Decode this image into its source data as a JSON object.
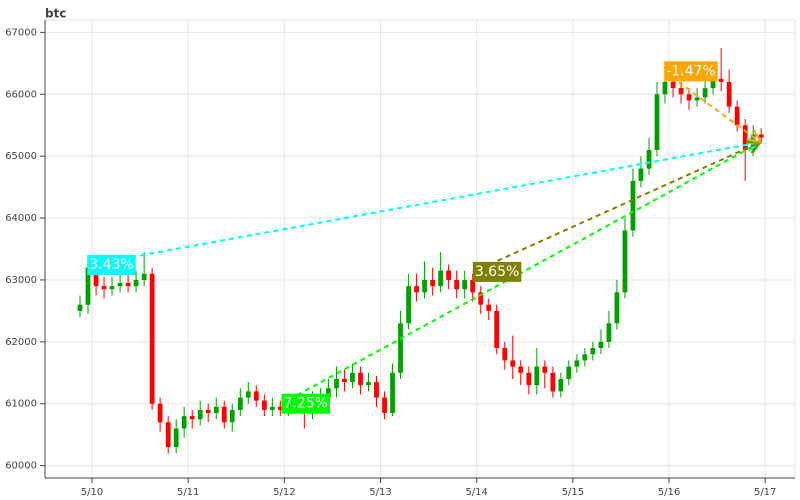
{
  "chart_data": {
    "type": "candlestick",
    "title": "btc",
    "x": [
      -0.125,
      -0.042,
      0.042,
      0.125,
      0.208,
      0.292,
      0.375,
      0.458,
      0.542,
      0.625,
      0.708,
      0.792,
      0.875,
      0.958,
      1.042,
      1.125,
      1.208,
      1.292,
      1.375,
      1.458,
      1.542,
      1.625,
      1.708,
      1.792,
      1.875,
      1.958,
      2.042,
      2.125,
      2.208,
      2.292,
      2.375,
      2.458,
      2.542,
      2.625,
      2.708,
      2.792,
      2.875,
      2.958,
      3.042,
      3.125,
      3.208,
      3.292,
      3.375,
      3.458,
      3.542,
      3.625,
      3.708,
      3.792,
      3.875,
      3.958,
      4.042,
      4.125,
      4.208,
      4.292,
      4.375,
      4.458,
      4.542,
      4.625,
      4.708,
      4.792,
      4.875,
      4.958,
      5.042,
      5.125,
      5.208,
      5.292,
      5.375,
      5.458,
      5.542,
      5.625,
      5.708,
      5.792,
      5.875,
      5.958,
      6.042,
      6.125,
      6.208,
      6.292,
      6.375,
      6.458,
      6.542,
      6.625,
      6.708,
      6.792,
      6.875,
      6.958
    ],
    "open": [
      62500,
      62600,
      63200,
      62900,
      62850,
      62900,
      62950,
      62900,
      63000,
      63100,
      61000,
      60700,
      60300,
      60600,
      60800,
      60750,
      60900,
      60850,
      60950,
      60700,
      60900,
      61100,
      61200,
      61050,
      60900,
      60950,
      60900,
      61000,
      60950,
      60850,
      61050,
      61100,
      61250,
      61400,
      61350,
      61500,
      61300,
      61350,
      61100,
      60850,
      61500,
      62300,
      62900,
      62800,
      63000,
      62900,
      63150,
      63000,
      62850,
      63000,
      62800,
      62600,
      62500,
      61900,
      61700,
      61600,
      61500,
      61300,
      61600,
      61500,
      61200,
      61400,
      61600,
      61700,
      61800,
      61900,
      62000,
      62300,
      62800,
      63800,
      64600,
      64800,
      65100,
      66000,
      66200,
      66100,
      66000,
      65900,
      65950,
      66100,
      66250,
      66200,
      65800,
      65500,
      65100,
      65350
    ],
    "high": [
      62750,
      63400,
      63350,
      63050,
      63050,
      63100,
      63100,
      63150,
      63450,
      63200,
      61100,
      60800,
      60750,
      60950,
      60900,
      61050,
      61000,
      61100,
      61050,
      61000,
      61250,
      61350,
      61300,
      61150,
      61100,
      61050,
      61100,
      61100,
      61050,
      61200,
      61250,
      61400,
      61600,
      61550,
      61650,
      61600,
      61500,
      61450,
      61200,
      61650,
      62500,
      63100,
      63100,
      63300,
      63200,
      63450,
      63250,
      63150,
      63150,
      63100,
      62900,
      62700,
      62600,
      62000,
      62100,
      61700,
      61600,
      61900,
      61700,
      61600,
      61500,
      61700,
      61800,
      61900,
      62000,
      62200,
      62500,
      63000,
      64000,
      64800,
      65000,
      65300,
      66200,
      66350,
      66300,
      66200,
      66100,
      66100,
      66250,
      66500,
      66750,
      66400,
      65900,
      65600,
      65500,
      65450
    ],
    "low": [
      62400,
      62450,
      62750,
      62700,
      62750,
      62800,
      62800,
      62800,
      62900,
      60900,
      60550,
      60200,
      60200,
      60450,
      60600,
      60650,
      60700,
      60750,
      60600,
      60550,
      60800,
      61000,
      60950,
      60800,
      60800,
      60800,
      60800,
      60850,
      60600,
      60750,
      60950,
      61000,
      61100,
      61200,
      61250,
      61150,
      61200,
      60950,
      60750,
      60800,
      61400,
      62200,
      62650,
      62700,
      62750,
      62800,
      62850,
      62700,
      62700,
      62650,
      62450,
      62350,
      61800,
      61550,
      61400,
      61300,
      61150,
      61150,
      61250,
      61100,
      61100,
      61300,
      61500,
      61600,
      61700,
      61800,
      61900,
      62200,
      62700,
      63700,
      64500,
      64700,
      65000,
      65850,
      65950,
      65850,
      65750,
      65800,
      65850,
      66000,
      66050,
      65700,
      65400,
      64600,
      65000,
      65200
    ],
    "close": [
      62600,
      63200,
      62900,
      62850,
      62900,
      62950,
      62900,
      63000,
      63100,
      61000,
      60700,
      60300,
      60600,
      60800,
      60750,
      60900,
      60850,
      60950,
      60700,
      60900,
      61100,
      61200,
      61050,
      60900,
      60950,
      60900,
      61000,
      60950,
      60850,
      61050,
      61100,
      61250,
      61400,
      61350,
      61500,
      61300,
      61350,
      61100,
      60850,
      61500,
      62300,
      62900,
      62800,
      63000,
      62900,
      63150,
      63000,
      62850,
      63000,
      62800,
      62600,
      62500,
      61900,
      61700,
      61600,
      61500,
      61300,
      61600,
      61500,
      61200,
      61400,
      61600,
      61700,
      61800,
      61900,
      62000,
      62300,
      62800,
      63800,
      64600,
      64800,
      65100,
      66000,
      66200,
      66100,
      66000,
      65900,
      65950,
      66100,
      66250,
      66200,
      65800,
      65500,
      65100,
      65350,
      65300
    ],
    "up_color": "#00a000",
    "down_color": "#ff0000",
    "xlim": [
      -0.489,
      7.31
    ],
    "ylim": [
      59800,
      67200
    ],
    "xticks": [
      {
        "value": 0,
        "label": "5/10"
      },
      {
        "value": 1,
        "label": "5/11"
      },
      {
        "value": 2,
        "label": "5/12"
      },
      {
        "value": 3,
        "label": "5/13"
      },
      {
        "value": 4,
        "label": "5/14"
      },
      {
        "value": 5,
        "label": "5/15"
      },
      {
        "value": 6,
        "label": "5/16"
      },
      {
        "value": 7,
        "label": "5/17"
      }
    ],
    "yticks": [
      60000,
      61000,
      62000,
      63000,
      64000,
      65000,
      66000,
      67000
    ],
    "grid": true,
    "annotations": [
      {
        "text": "3.43%",
        "x": -0.05,
        "y": 63240,
        "x_end": 6.95,
        "y_end": 65225,
        "color": "#00ffff"
      },
      {
        "text": "7.25%",
        "x": 1.97,
        "y": 61000,
        "x_end": 6.95,
        "y_end": 65225,
        "color": "#00ff00"
      },
      {
        "text": "3.65%",
        "x": 3.96,
        "y": 63130,
        "x_end": 6.95,
        "y_end": 65225,
        "color": "#808000"
      },
      {
        "text": "-1.47%",
        "x": 5.95,
        "y": 66370,
        "x_end": 6.95,
        "y_end": 65225,
        "color": "#ffa500"
      }
    ]
  }
}
